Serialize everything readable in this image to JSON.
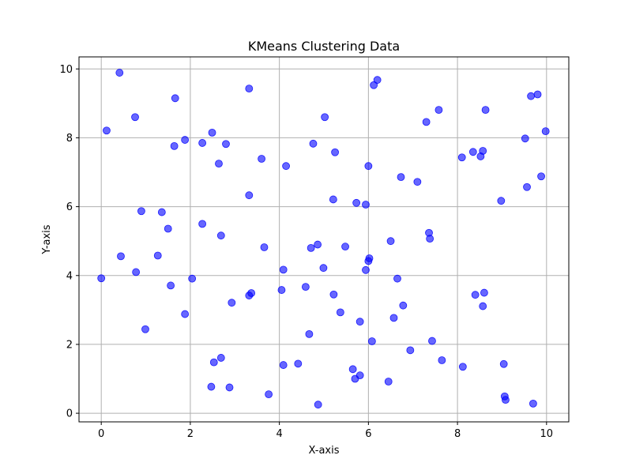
{
  "chart_data": {
    "type": "scatter",
    "title": "KMeans Clustering Data",
    "xlabel": "X-axis",
    "ylabel": "Y-axis",
    "xlim": [
      -0.5,
      10.5
    ],
    "ylim": [
      -0.25,
      10.35
    ],
    "xticks": [
      0,
      2,
      4,
      6,
      8,
      10
    ],
    "yticks": [
      0,
      2,
      4,
      6,
      8,
      10
    ],
    "grid": true,
    "point_color": "#0000ff",
    "point_opacity": 0.6,
    "series": [
      {
        "points": [
          [
            0.0,
            3.92
          ],
          [
            0.12,
            8.21
          ],
          [
            0.41,
            9.89
          ],
          [
            0.44,
            4.56
          ],
          [
            0.76,
            8.6
          ],
          [
            0.78,
            4.1
          ],
          [
            0.9,
            5.87
          ],
          [
            0.99,
            2.44
          ],
          [
            1.27,
            4.58
          ],
          [
            1.36,
            5.84
          ],
          [
            1.5,
            5.36
          ],
          [
            1.56,
            3.71
          ],
          [
            1.64,
            7.76
          ],
          [
            1.66,
            9.15
          ],
          [
            1.88,
            7.94
          ],
          [
            1.88,
            2.88
          ],
          [
            2.04,
            3.91
          ],
          [
            2.27,
            5.5
          ],
          [
            2.27,
            7.85
          ],
          [
            2.47,
            0.77
          ],
          [
            2.49,
            8.15
          ],
          [
            2.53,
            1.48
          ],
          [
            2.64,
            7.25
          ],
          [
            2.69,
            1.61
          ],
          [
            2.69,
            5.16
          ],
          [
            2.8,
            7.82
          ],
          [
            2.88,
            0.75
          ],
          [
            2.93,
            3.21
          ],
          [
            3.32,
            9.43
          ],
          [
            3.32,
            6.33
          ],
          [
            3.32,
            3.42
          ],
          [
            3.37,
            3.49
          ],
          [
            3.6,
            7.39
          ],
          [
            3.66,
            4.82
          ],
          [
            3.76,
            0.55
          ],
          [
            4.05,
            3.58
          ],
          [
            4.09,
            1.4
          ],
          [
            4.09,
            4.17
          ],
          [
            4.15,
            7.18
          ],
          [
            4.42,
            1.44
          ],
          [
            4.59,
            3.67
          ],
          [
            4.67,
            2.3
          ],
          [
            4.71,
            4.8
          ],
          [
            4.76,
            7.83
          ],
          [
            4.86,
            4.9
          ],
          [
            4.87,
            0.25
          ],
          [
            4.99,
            4.22
          ],
          [
            5.02,
            8.6
          ],
          [
            5.21,
            6.21
          ],
          [
            5.22,
            3.45
          ],
          [
            5.25,
            7.58
          ],
          [
            5.37,
            2.93
          ],
          [
            5.48,
            4.84
          ],
          [
            5.65,
            1.28
          ],
          [
            5.7,
            1.0
          ],
          [
            5.73,
            6.11
          ],
          [
            5.81,
            2.66
          ],
          [
            5.81,
            1.1
          ],
          [
            5.94,
            4.16
          ],
          [
            5.94,
            6.06
          ],
          [
            6.0,
            4.42
          ],
          [
            6.02,
            4.5
          ],
          [
            6.0,
            7.18
          ],
          [
            6.08,
            2.09
          ],
          [
            6.12,
            9.53
          ],
          [
            6.2,
            9.68
          ],
          [
            6.45,
            0.92
          ],
          [
            6.5,
            5.0
          ],
          [
            6.57,
            2.77
          ],
          [
            6.65,
            3.91
          ],
          [
            6.73,
            6.86
          ],
          [
            6.78,
            3.13
          ],
          [
            6.94,
            1.83
          ],
          [
            7.1,
            6.72
          ],
          [
            7.3,
            8.46
          ],
          [
            7.36,
            5.24
          ],
          [
            7.38,
            5.07
          ],
          [
            7.43,
            2.1
          ],
          [
            7.58,
            8.81
          ],
          [
            7.65,
            1.54
          ],
          [
            8.1,
            7.43
          ],
          [
            8.12,
            1.35
          ],
          [
            8.35,
            7.59
          ],
          [
            8.4,
            3.44
          ],
          [
            8.52,
            7.46
          ],
          [
            8.57,
            3.11
          ],
          [
            8.57,
            7.62
          ],
          [
            8.6,
            3.5
          ],
          [
            8.63,
            8.81
          ],
          [
            8.98,
            6.17
          ],
          [
            9.04,
            1.43
          ],
          [
            9.06,
            0.49
          ],
          [
            9.08,
            0.39
          ],
          [
            9.52,
            7.98
          ],
          [
            9.56,
            6.57
          ],
          [
            9.65,
            9.21
          ],
          [
            9.7,
            0.28
          ],
          [
            9.8,
            9.26
          ],
          [
            9.88,
            6.88
          ],
          [
            9.98,
            8.19
          ]
        ]
      }
    ]
  }
}
